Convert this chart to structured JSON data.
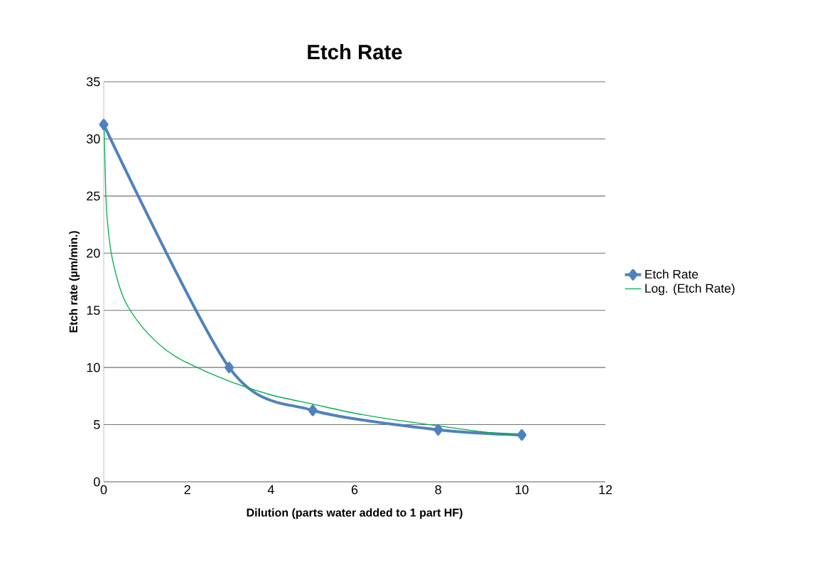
{
  "chart_data": {
    "type": "line",
    "title": "Etch Rate",
    "xlabel": "Dilution (parts water added to 1 part HF)",
    "ylabel": "Etch rate (µm/min.)",
    "xlim": [
      0,
      12
    ],
    "xticks": [
      0,
      2,
      4,
      6,
      8,
      10,
      12
    ],
    "ylim": [
      0,
      35
    ],
    "yticks": [
      0,
      5,
      10,
      15,
      20,
      25,
      30,
      35
    ],
    "grid": "y",
    "legend": "right",
    "series": [
      {
        "name": "Etch Rate",
        "color": "#4f81bd",
        "marker": "diamond",
        "x": [
          0,
          3,
          5,
          8,
          10
        ],
        "values": [
          31.25,
          10,
          6.25,
          4.55,
          4.1
        ]
      },
      {
        "name": "Log. (Etch Rate)",
        "color": "#00b050",
        "marker": "none",
        "x": [
          0.011,
          0.05,
          0.1,
          0.2,
          0.4,
          0.6,
          1,
          1.5,
          2,
          3,
          4,
          5,
          6,
          7,
          8,
          9,
          10
        ],
        "values": [
          31,
          25,
          22.3,
          19.6,
          16.8,
          15.2,
          13.2,
          11.5,
          10.4,
          8.8,
          7.6,
          6.8,
          6.0,
          5.4,
          4.9,
          4.4,
          4.0
        ]
      }
    ]
  }
}
